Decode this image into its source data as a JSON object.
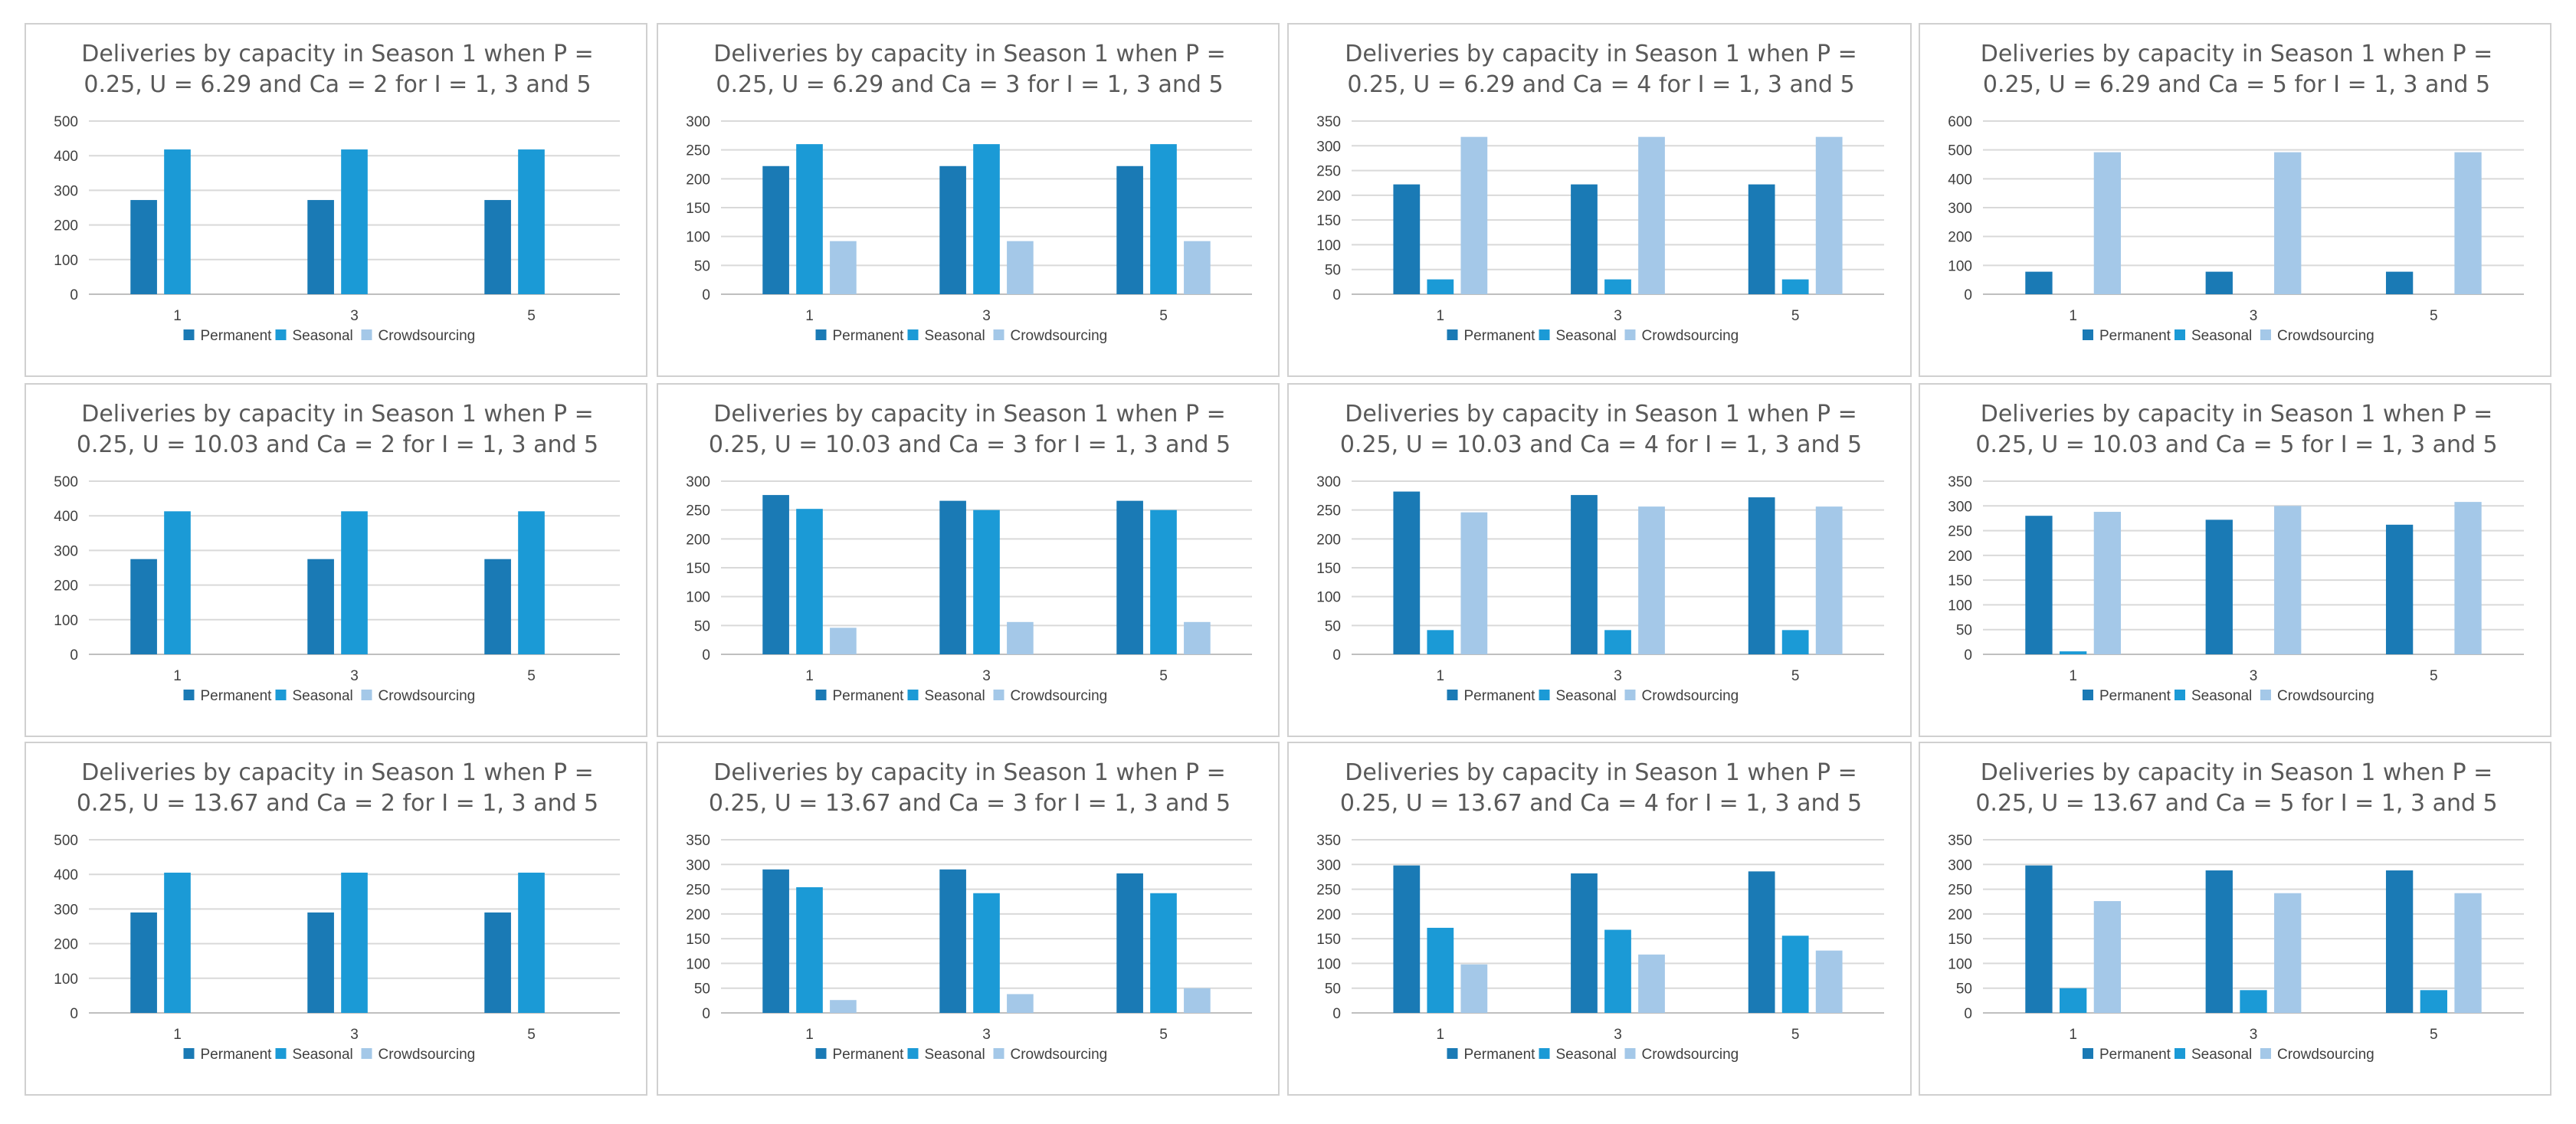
{
  "series_names": [
    "Permanent",
    "Seasonal",
    "Crowdsourcing"
  ],
  "colors": {
    "Permanent": "#1a7ab5",
    "Seasonal": "#1b9ad6",
    "Crowdsourcing": "#a4c8e8",
    "grid": "#d9d9d9",
    "axis": "#bfbfbf",
    "panel_border": "#d0d0d0"
  },
  "chart_data": [
    {
      "type": "bar",
      "title": "Deliveries by capacity in Season 1 when P = 0.25, U = 6.29 and Ca = 2 for I = 1, 3 and 5",
      "title_lines": [
        "Deliveries by capacity in Season 1 when P =",
        "0.25, U = 6.29 and Ca = 2 for I = 1, 3 and 5"
      ],
      "categories": [
        "1",
        "3",
        "5"
      ],
      "ylim": [
        0,
        500
      ],
      "yticks": [
        0,
        100,
        200,
        300,
        400,
        500
      ],
      "series": [
        {
          "name": "Permanent",
          "values": [
            272,
            272,
            272
          ]
        },
        {
          "name": "Seasonal",
          "values": [
            418,
            418,
            418
          ]
        },
        {
          "name": "Crowdsourcing",
          "values": [
            0,
            0,
            0
          ]
        }
      ],
      "legend_position": "bottom",
      "grid": true
    },
    {
      "type": "bar",
      "title": "Deliveries by capacity in Season 1 when P = 0.25, U = 6.29 and Ca = 3 for I = 1, 3 and 5",
      "title_lines": [
        "Deliveries by capacity in Season 1 when P =",
        "0.25, U = 6.29 and Ca = 3 for I = 1, 3 and 5"
      ],
      "categories": [
        "1",
        "3",
        "5"
      ],
      "ylim": [
        0,
        300
      ],
      "yticks": [
        0,
        50,
        100,
        150,
        200,
        250,
        300
      ],
      "series": [
        {
          "name": "Permanent",
          "values": [
            222,
            222,
            222
          ]
        },
        {
          "name": "Seasonal",
          "values": [
            260,
            260,
            260
          ]
        },
        {
          "name": "Crowdsourcing",
          "values": [
            92,
            92,
            92
          ]
        }
      ],
      "legend_position": "bottom",
      "grid": true
    },
    {
      "type": "bar",
      "title": "Deliveries by capacity in Season 1 when P = 0.25, U = 6.29 and Ca = 4 for I = 1, 3 and 5",
      "title_lines": [
        "Deliveries by capacity in Season 1 when P =",
        "0.25, U = 6.29 and Ca = 4 for I = 1, 3 and 5"
      ],
      "categories": [
        "1",
        "3",
        "5"
      ],
      "ylim": [
        0,
        350
      ],
      "yticks": [
        0,
        50,
        100,
        150,
        200,
        250,
        300,
        350
      ],
      "series": [
        {
          "name": "Permanent",
          "values": [
            222,
            222,
            222
          ]
        },
        {
          "name": "Seasonal",
          "values": [
            30,
            30,
            30
          ]
        },
        {
          "name": "Crowdsourcing",
          "values": [
            318,
            318,
            318
          ]
        }
      ],
      "legend_position": "bottom",
      "grid": true
    },
    {
      "type": "bar",
      "title": "Deliveries by capacity in Season 1 when P = 0.25, U = 6.29 and Ca = 5 for I = 1, 3 and 5",
      "title_lines": [
        "Deliveries by capacity in Season 1 when P =",
        "0.25, U = 6.29 and Ca = 5 for I = 1, 3 and 5"
      ],
      "categories": [
        "1",
        "3",
        "5"
      ],
      "ylim": [
        0,
        600
      ],
      "yticks": [
        0,
        100,
        200,
        300,
        400,
        500,
        600
      ],
      "series": [
        {
          "name": "Permanent",
          "values": [
            78,
            78,
            78
          ]
        },
        {
          "name": "Seasonal",
          "values": [
            0,
            0,
            0
          ]
        },
        {
          "name": "Crowdsourcing",
          "values": [
            492,
            492,
            492
          ]
        }
      ],
      "legend_position": "bottom",
      "grid": true
    },
    {
      "type": "bar",
      "title": "Deliveries by capacity in Season 1 when P = 0.25, U = 10.03 and Ca = 2 for I = 1, 3 and 5",
      "title_lines": [
        "Deliveries by capacity in Season 1 when P =",
        "0.25, U = 10.03 and Ca = 2 for I = 1, 3 and 5"
      ],
      "categories": [
        "1",
        "3",
        "5"
      ],
      "ylim": [
        0,
        500
      ],
      "yticks": [
        0,
        100,
        200,
        300,
        400,
        500
      ],
      "series": [
        {
          "name": "Permanent",
          "values": [
            275,
            275,
            275
          ]
        },
        {
          "name": "Seasonal",
          "values": [
            413,
            413,
            413
          ]
        },
        {
          "name": "Crowdsourcing",
          "values": [
            0,
            0,
            0
          ]
        }
      ],
      "legend_position": "bottom",
      "grid": true
    },
    {
      "type": "bar",
      "title": "Deliveries by capacity in Season 1 when P = 0.25, U = 10.03 and Ca = 3 for I = 1, 3 and 5",
      "title_lines": [
        "Deliveries by capacity in Season 1 when P =",
        "0.25, U = 10.03 and Ca = 3 for I = 1, 3 and 5"
      ],
      "categories": [
        "1",
        "3",
        "5"
      ],
      "ylim": [
        0,
        300
      ],
      "yticks": [
        0,
        50,
        100,
        150,
        200,
        250,
        300
      ],
      "series": [
        {
          "name": "Permanent",
          "values": [
            276,
            266,
            266
          ]
        },
        {
          "name": "Seasonal",
          "values": [
            252,
            250,
            250
          ]
        },
        {
          "name": "Crowdsourcing",
          "values": [
            46,
            56,
            56
          ]
        }
      ],
      "legend_position": "bottom",
      "grid": true
    },
    {
      "type": "bar",
      "title": "Deliveries by capacity in Season 1 when P = 0.25, U = 10.03 and Ca = 4 for I = 1, 3 and 5",
      "title_lines": [
        "Deliveries by capacity in Season 1 when P =",
        "0.25, U = 10.03 and Ca = 4 for I = 1, 3 and 5"
      ],
      "categories": [
        "1",
        "3",
        "5"
      ],
      "ylim": [
        0,
        300
      ],
      "yticks": [
        0,
        50,
        100,
        150,
        200,
        250,
        300
      ],
      "series": [
        {
          "name": "Permanent",
          "values": [
            282,
            276,
            272
          ]
        },
        {
          "name": "Seasonal",
          "values": [
            42,
            42,
            42
          ]
        },
        {
          "name": "Crowdsourcing",
          "values": [
            246,
            256,
            256
          ]
        }
      ],
      "legend_position": "bottom",
      "grid": true
    },
    {
      "type": "bar",
      "title": "Deliveries by capacity in Season 1 when P = 0.25, U = 10.03 and Ca = 5 for I = 1, 3 and 5",
      "title_lines": [
        "Deliveries by capacity in Season 1 when P =",
        "0.25, U = 10.03 and Ca = 5 for I = 1, 3 and 5"
      ],
      "categories": [
        "1",
        "3",
        "5"
      ],
      "ylim": [
        0,
        350
      ],
      "yticks": [
        0,
        50,
        100,
        150,
        200,
        250,
        300,
        350
      ],
      "series": [
        {
          "name": "Permanent",
          "values": [
            280,
            272,
            262
          ]
        },
        {
          "name": "Seasonal",
          "values": [
            6,
            0,
            0
          ]
        },
        {
          "name": "Crowdsourcing",
          "values": [
            288,
            300,
            308
          ]
        }
      ],
      "legend_position": "bottom",
      "grid": true
    },
    {
      "type": "bar",
      "title": "Deliveries by capacity in Season 1 when P = 0.25, U = 13.67 and Ca = 2 for I = 1, 3 and 5",
      "title_lines": [
        "Deliveries by capacity in Season 1 when P =",
        "0.25, U = 13.67 and Ca = 2 for I = 1, 3 and 5"
      ],
      "categories": [
        "1",
        "3",
        "5"
      ],
      "ylim": [
        0,
        500
      ],
      "yticks": [
        0,
        100,
        200,
        300,
        400,
        500
      ],
      "series": [
        {
          "name": "Permanent",
          "values": [
            290,
            290,
            290
          ]
        },
        {
          "name": "Seasonal",
          "values": [
            405,
            405,
            405
          ]
        },
        {
          "name": "Crowdsourcing",
          "values": [
            0,
            0,
            0
          ]
        }
      ],
      "legend_position": "bottom",
      "grid": true
    },
    {
      "type": "bar",
      "title": "Deliveries by capacity in Season 1 when P = 0.25, U = 13.67 and Ca = 3 for I = 1, 3 and 5",
      "title_lines": [
        "Deliveries by capacity in Season 1 when P =",
        "0.25, U = 13.67 and Ca = 3 for I = 1, 3 and 5"
      ],
      "categories": [
        "1",
        "3",
        "5"
      ],
      "ylim": [
        0,
        350
      ],
      "yticks": [
        0,
        50,
        100,
        150,
        200,
        250,
        300,
        350
      ],
      "series": [
        {
          "name": "Permanent",
          "values": [
            290,
            290,
            282
          ]
        },
        {
          "name": "Seasonal",
          "values": [
            254,
            242,
            242
          ]
        },
        {
          "name": "Crowdsourcing",
          "values": [
            26,
            38,
            50
          ]
        }
      ],
      "legend_position": "bottom",
      "grid": true
    },
    {
      "type": "bar",
      "title": "Deliveries by capacity in Season 1 when P = 0.25, U = 13.67 and Ca = 4 for I = 1, 3 and 5",
      "title_lines": [
        "Deliveries by capacity in Season 1 when P =",
        "0.25, U = 13.67 and Ca = 4 for I = 1, 3 and 5"
      ],
      "categories": [
        "1",
        "3",
        "5"
      ],
      "ylim": [
        0,
        350
      ],
      "yticks": [
        0,
        50,
        100,
        150,
        200,
        250,
        300,
        350
      ],
      "series": [
        {
          "name": "Permanent",
          "values": [
            298,
            282,
            286
          ]
        },
        {
          "name": "Seasonal",
          "values": [
            172,
            168,
            156
          ]
        },
        {
          "name": "Crowdsourcing",
          "values": [
            98,
            118,
            126
          ]
        }
      ],
      "legend_position": "bottom",
      "grid": true
    },
    {
      "type": "bar",
      "title": "Deliveries by capacity in Season 1 when P = 0.25, U = 13.67 and Ca = 5 for I = 1, 3 and 5",
      "title_lines": [
        "Deliveries by capacity in Season 1 when P =",
        "0.25, U = 13.67 and Ca = 5 for I = 1, 3 and 5"
      ],
      "categories": [
        "1",
        "3",
        "5"
      ],
      "ylim": [
        0,
        350
      ],
      "yticks": [
        0,
        50,
        100,
        150,
        200,
        250,
        300,
        350
      ],
      "series": [
        {
          "name": "Permanent",
          "values": [
            298,
            288,
            288
          ]
        },
        {
          "name": "Seasonal",
          "values": [
            50,
            46,
            46
          ]
        },
        {
          "name": "Crowdsourcing",
          "values": [
            226,
            242,
            242
          ]
        }
      ],
      "legend_position": "bottom",
      "grid": true
    }
  ]
}
